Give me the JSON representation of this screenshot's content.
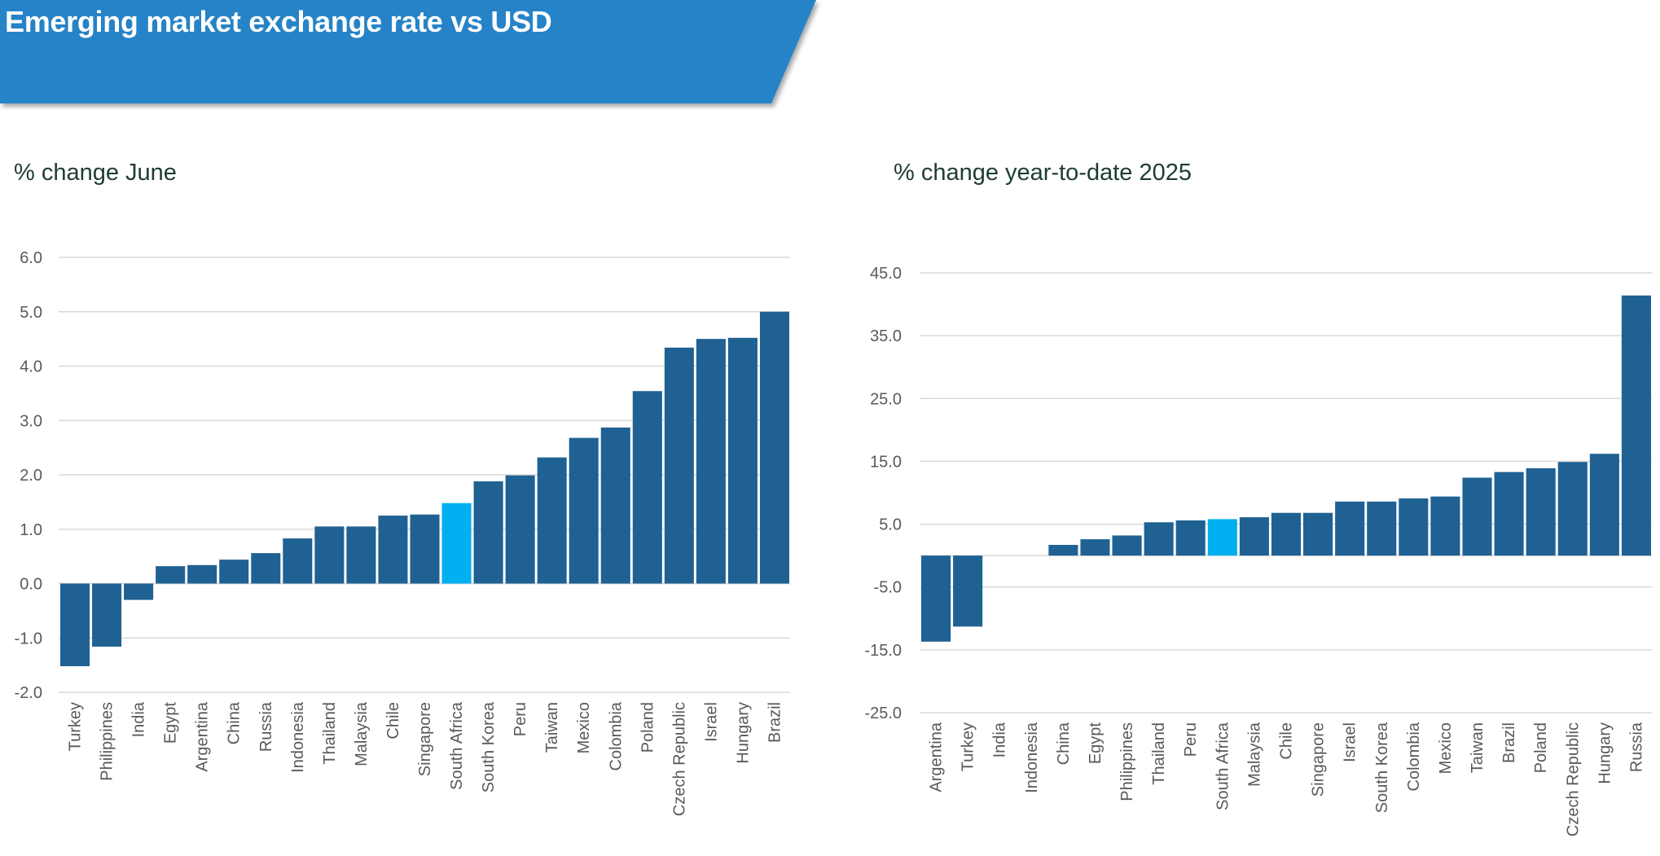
{
  "header": {
    "title": "Emerging market exchange rate vs USD"
  },
  "colors": {
    "banner": "#2783C7",
    "bar": "#1F6192",
    "highlight": "#00B0F0",
    "grid": "#D9D9D9",
    "title": "#1E3D2E",
    "axis_text": "#595959"
  },
  "chart_data": [
    {
      "type": "bar",
      "title": "% change June",
      "xlabel": "",
      "ylabel": "",
      "ylim": [
        -2.0,
        6.0
      ],
      "yticks": [
        "6.0",
        "5.0",
        "4.0",
        "3.0",
        "2.0",
        "1.0",
        "0.0",
        "-1.0",
        "-2.0"
      ],
      "grid": true,
      "legend": "none",
      "highlight": "South Africa",
      "categories": [
        "Turkey",
        "Philippines",
        "India",
        "Egypt",
        "Argentina",
        "China",
        "Russia",
        "Indonesia",
        "Thailand",
        "Malaysia",
        "Chile",
        "Singapore",
        "South Africa",
        "South Korea",
        "Peru",
        "Taiwan",
        "Mexico",
        "Colombia",
        "Poland",
        "Czech Republic",
        "Israel",
        "Hungary",
        "Brazil"
      ],
      "values": [
        -1.52,
        -1.16,
        -0.3,
        0.32,
        0.34,
        0.44,
        0.56,
        0.83,
        1.05,
        1.05,
        1.25,
        1.27,
        1.48,
        1.88,
        1.99,
        2.32,
        2.68,
        2.87,
        3.54,
        4.34,
        4.5,
        4.52,
        5.0
      ]
    },
    {
      "type": "bar",
      "title": "% change year-to-date 2025",
      "xlabel": "",
      "ylabel": "",
      "ylim": [
        -25.0,
        45.0
      ],
      "yticks": [
        "45.0",
        "35.0",
        "25.0",
        "15.0",
        "5.0",
        "-5.0",
        "-15.0",
        "-25.0"
      ],
      "grid": true,
      "legend": "none",
      "highlight": "South Africa",
      "categories": [
        "Argentina",
        "Turkey",
        "India",
        "Indonesia",
        "China",
        "Egypt",
        "Philippines",
        "Thailand",
        "Peru",
        "South Africa",
        "Malaysia",
        "Chile",
        "Singapore",
        "Israel",
        "South Korea",
        "Colombia",
        "Mexico",
        "Taiwan",
        "Brazil",
        "Poland",
        "Czech Republic",
        "Hungary",
        "Russia"
      ],
      "values": [
        -13.7,
        -11.3,
        0.0,
        0.0,
        1.7,
        2.6,
        3.2,
        5.3,
        5.6,
        5.8,
        6.1,
        6.8,
        6.8,
        8.6,
        8.6,
        9.1,
        9.4,
        12.4,
        13.3,
        13.9,
        14.9,
        16.2,
        41.4
      ]
    }
  ]
}
